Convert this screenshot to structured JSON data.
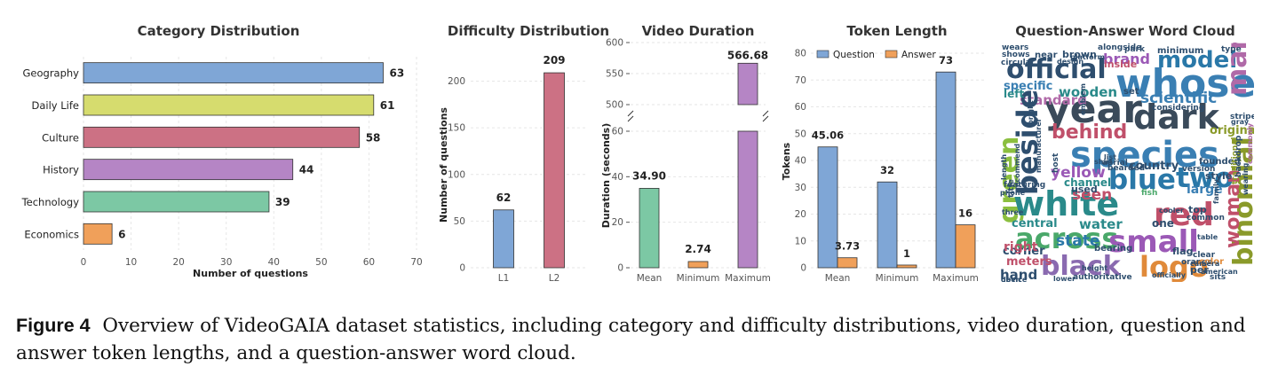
{
  "chart_data": [
    {
      "type": "bar",
      "orientation": "horizontal",
      "title": "Category Distribution",
      "xlabel": "Number of questions",
      "categories": [
        "Geography",
        "Daily Life",
        "Culture",
        "History",
        "Technology",
        "Economics"
      ],
      "values": [
        63,
        61,
        58,
        44,
        39,
        6
      ],
      "colors": [
        "#7fa6d6",
        "#d6dc6e",
        "#cc7184",
        "#b585c5",
        "#7cc8a4",
        "#f0a05a"
      ],
      "xlim": [
        0,
        70
      ],
      "xticks": [
        "0",
        "10",
        "20",
        "30",
        "40",
        "50",
        "60",
        "70"
      ],
      "grid": true
    },
    {
      "type": "bar",
      "title": "Difficulty Distribution",
      "ylabel": "Number of questions",
      "categories": [
        "L1",
        "L2"
      ],
      "values": [
        62,
        209
      ],
      "colors": [
        "#7fa6d6",
        "#cc7184"
      ],
      "ylim": [
        0,
        230
      ],
      "yticks": [
        "0",
        "50",
        "100",
        "150",
        "200"
      ],
      "grid": true
    },
    {
      "type": "bar",
      "title": "Video Duration",
      "ylabel": "Duration (seconds)",
      "categories": [
        "Mean",
        "Minimum",
        "Maximum"
      ],
      "values": [
        34.9,
        2.74,
        566.68
      ],
      "value_labels": [
        "34.90",
        "2.74",
        "566.68"
      ],
      "colors": [
        "#7cc8a4",
        "#f0a05a",
        "#b585c5"
      ],
      "broken_axis": true,
      "lower_ylim": [
        0,
        60
      ],
      "upper_ylim": [
        500,
        600
      ],
      "yticks": [
        "0",
        "20",
        "40",
        "60",
        "500",
        "550",
        "600"
      ],
      "grid": true
    },
    {
      "type": "bar",
      "title": "Token Length",
      "ylabel": "Tokens",
      "categories": [
        "Mean",
        "Minimum",
        "Maximum"
      ],
      "series": [
        {
          "name": "Question",
          "values": [
            45.06,
            32,
            73
          ],
          "labels": [
            "45.06",
            "32",
            "73"
          ],
          "color": "#7fa6d6"
        },
        {
          "name": "Answer",
          "values": [
            3.73,
            1,
            16
          ],
          "labels": [
            "3.73",
            "1",
            "16"
          ],
          "color": "#f0a05a"
        }
      ],
      "ylim": [
        0,
        82
      ],
      "yticks": [
        "0",
        "10",
        "20",
        "30",
        "40",
        "50",
        "60",
        "70",
        "80"
      ],
      "legend": "top-left",
      "grid": true
    }
  ],
  "wordcloud": {
    "title": "Question-Answer Word Cloud",
    "words": [
      {
        "text": "official",
        "color": "#2e4e6e"
      },
      {
        "text": "model",
        "color": "#2a78a8"
      },
      {
        "text": "whose",
        "color": "#3a7fb3"
      },
      {
        "text": "man",
        "color": "#b06aa8"
      },
      {
        "text": "brand",
        "color": "#9b59b6"
      },
      {
        "text": "year",
        "color": "#3a4a5a"
      },
      {
        "text": "dark",
        "color": "#3a4a5a"
      },
      {
        "text": "specific",
        "color": "#3a7fb3"
      },
      {
        "text": "standard",
        "color": "#b06aa8"
      },
      {
        "text": "scientific",
        "color": "#3a7fb3"
      },
      {
        "text": "wooden",
        "color": "#2a8a8a"
      },
      {
        "text": "behind",
        "color": "#c0506a"
      },
      {
        "text": "beside",
        "color": "#2e4e6e"
      },
      {
        "text": "green",
        "color": "#8bbf3f"
      },
      {
        "text": "species",
        "color": "#3a7fb3"
      },
      {
        "text": "binomial",
        "color": "#8a9a2a"
      },
      {
        "text": "blue",
        "color": "#2a78a8"
      },
      {
        "text": "two",
        "color": "#2a78a8"
      },
      {
        "text": "yellow",
        "color": "#9b59b6"
      },
      {
        "text": "country",
        "color": "#2e4e6e"
      },
      {
        "text": "white",
        "color": "#2a8a8a"
      },
      {
        "text": "red",
        "color": "#c0506a"
      },
      {
        "text": "woman",
        "color": "#c0506a"
      },
      {
        "text": "across",
        "color": "#4aa86a"
      },
      {
        "text": "small",
        "color": "#9b59b6"
      },
      {
        "text": "black",
        "color": "#8a6ab0"
      },
      {
        "text": "logo",
        "color": "#e08a3a"
      },
      {
        "text": "seen",
        "color": "#c0506a"
      },
      {
        "text": "water",
        "color": "#2a8a8a"
      },
      {
        "text": "central",
        "color": "#2a8a8a"
      },
      {
        "text": "state",
        "color": "#2a78a8"
      },
      {
        "text": "corner",
        "color": "#2e4e6e"
      },
      {
        "text": "meters",
        "color": "#c0506a"
      },
      {
        "text": "hand",
        "color": "#2e4e6e"
      },
      {
        "text": "open",
        "color": "#2e4e6e"
      },
      {
        "text": "right",
        "color": "#c0506a"
      },
      {
        "text": "left",
        "color": "#2a8a8a"
      },
      {
        "text": "shows",
        "color": "#2e4e6e"
      },
      {
        "text": "near",
        "color": "#2e4e6e"
      },
      {
        "text": "brown",
        "color": "#2e4e6e"
      },
      {
        "text": "minimum",
        "color": "#2e4e6e"
      },
      {
        "text": "large",
        "color": "#3a7fb3"
      },
      {
        "text": "channel",
        "color": "#2a8a8a"
      },
      {
        "text": "manufacturer",
        "color": "#2e4e6e"
      },
      {
        "text": "originally",
        "color": "#8a9a2a"
      },
      {
        "text": "founded",
        "color": "#2e4e6e"
      },
      {
        "text": "used",
        "color": "#2e4e6e"
      },
      {
        "text": "fish",
        "color": "#4aa86a"
      },
      {
        "text": "one",
        "color": "#2e4e6e"
      },
      {
        "text": "top",
        "color": "#2e4e6e"
      },
      {
        "text": "common",
        "color": "#2e4e6e"
      },
      {
        "text": "traditional",
        "color": "#8a9a2a"
      },
      {
        "text": "commonly",
        "color": "#b06aa8"
      },
      {
        "text": "authoritative",
        "color": "#2e4e6e"
      },
      {
        "text": "officially",
        "color": "#2e4e6e"
      },
      {
        "text": "bearing",
        "color": "#2e4e6e"
      },
      {
        "text": "flag",
        "color": "#2e4e6e"
      },
      {
        "text": "per",
        "color": "#2e4e6e"
      },
      {
        "text": "sits",
        "color": "#2e4e6e"
      },
      {
        "text": "wears",
        "color": "#2e4e6e"
      },
      {
        "text": "alongside",
        "color": "#2e4e6e"
      },
      {
        "text": "inside",
        "color": "#c0506a"
      },
      {
        "text": "park",
        "color": "#2e4e6e"
      },
      {
        "text": "type",
        "color": "#2e4e6e"
      },
      {
        "text": "set",
        "color": "#2e4e6e"
      },
      {
        "text": "considering",
        "color": "#2e4e6e"
      },
      {
        "text": "version",
        "color": "#2e4e6e"
      },
      {
        "text": "style",
        "color": "#2e4e6e"
      },
      {
        "text": "featuring",
        "color": "#2e4e6e"
      },
      {
        "text": "orange",
        "color": "#2e4e6e"
      },
      {
        "text": "clear",
        "color": "#2e4e6e"
      },
      {
        "text": "color",
        "color": "#e08a3a"
      },
      {
        "text": "lower",
        "color": "#2e4e6e"
      },
      {
        "text": "height",
        "color": "#2e4e6e"
      },
      {
        "text": "host",
        "color": "#2e4e6e"
      },
      {
        "text": "aerial",
        "color": "#2e4e6e"
      },
      {
        "text": "bearded",
        "color": "#2e4e6e"
      },
      {
        "text": "shirt",
        "color": "#2e4e6e"
      },
      {
        "text": "striped",
        "color": "#2e4e6e"
      },
      {
        "text": "backdrop",
        "color": "#2e4e6e"
      },
      {
        "text": "wearing",
        "color": "#2e4e6e"
      },
      {
        "text": "title",
        "color": "#2e4e6e"
      },
      {
        "text": "phone",
        "color": "#2e4e6e"
      },
      {
        "text": "recommend",
        "color": "#2e4e6e"
      },
      {
        "text": "gray",
        "color": "#2e4e6e"
      },
      {
        "text": "bright",
        "color": "#2e4e6e"
      },
      {
        "text": "emblem",
        "color": "#2e4e6e"
      },
      {
        "text": "platform",
        "color": "#2e4e6e"
      },
      {
        "text": "design",
        "color": "#2e4e6e"
      },
      {
        "text": "table",
        "color": "#2e4e6e"
      },
      {
        "text": "cooler",
        "color": "#2e4e6e"
      },
      {
        "text": "camera",
        "color": "#2e4e6e"
      },
      {
        "text": "american",
        "color": "#2e4e6e"
      },
      {
        "text": "family",
        "color": "#2e4e6e"
      },
      {
        "text": "circular",
        "color": "#2e4e6e"
      },
      {
        "text": "list",
        "color": "#2e4e6e"
      },
      {
        "text": "three",
        "color": "#2e4e6e"
      },
      {
        "text": "length",
        "color": "#2e4e6e"
      },
      {
        "text": "device",
        "color": "#2e4e6e"
      }
    ]
  },
  "caption": {
    "label": "Figure 4",
    "text": "Overview of VideoGAIA dataset statistics, including category and difficulty distributions, video duration, question and answer token lengths, and a question-answer word cloud."
  }
}
